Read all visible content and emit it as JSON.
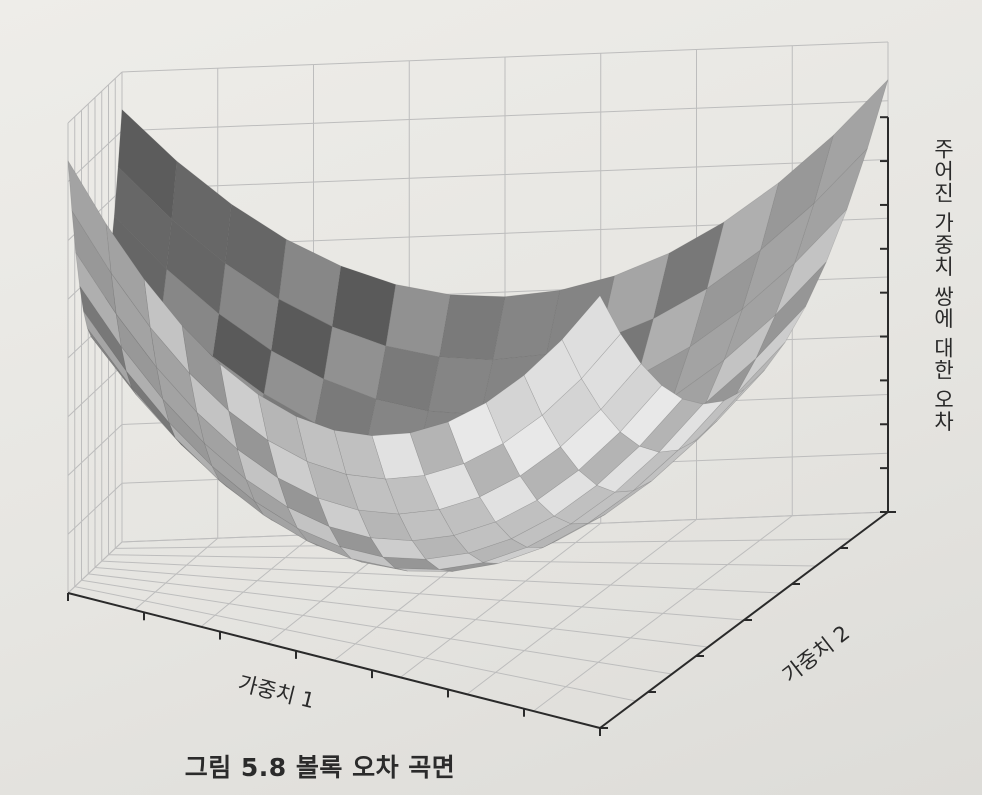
{
  "figure": {
    "axis_x_label": "가중치 1",
    "axis_y_label": "가중치 2",
    "axis_z_label": "주어진 가중치 쌍에 대한 오차",
    "caption": "그림 5.8  볼록 오차 곡면"
  },
  "chart_data": {
    "type": "surface",
    "surface": "convex paraboloid (bowl)",
    "xlabel": "가중치 1",
    "ylabel": "가중치 2",
    "zlabel": "주어진 가중치 쌍에 대한 오차",
    "grid": true,
    "tick_labels_shown": false,
    "colormap": "grayscale",
    "colors": {
      "ink": "#2a2a2a",
      "grid": "#bdbdbd",
      "surface_light": "#e4e4e4",
      "surface_dark": "#4a4a4a"
    }
  }
}
